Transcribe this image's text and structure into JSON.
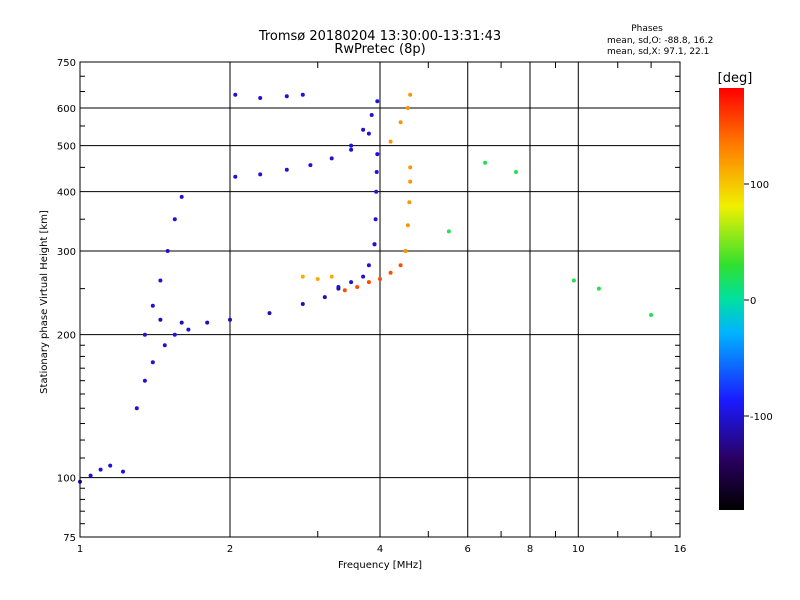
{
  "title_line1": "Tromsø 20180204 13:30:00-13:31:43",
  "title_line2": "RwPretec (8p)",
  "phase_box": {
    "heading": "Phases",
    "line_o": "mean, sd,O: -88.8, 16.2",
    "line_x": "mean, sd,X:  97.1, 22.1"
  },
  "colorbar": {
    "label": "[deg]",
    "ticks": [
      "100",
      "0",
      "-100"
    ]
  },
  "chart_data": {
    "type": "scatter",
    "xlabel": "Frequency [MHz]",
    "ylabel": "Stationary phase Virtual Height [km]",
    "xscale": "log",
    "yscale": "log",
    "xlim": [
      1,
      16
    ],
    "ylim": [
      75,
      750
    ],
    "x_ticks": [
      "1",
      "2",
      "4",
      "6",
      "8",
      "10",
      "16"
    ],
    "y_ticks": [
      "75",
      "100",
      "200",
      "300",
      "400",
      "500",
      "600",
      "750"
    ],
    "grid": true,
    "color_scale": {
      "label": "[deg]",
      "min": -180,
      "max": 180
    },
    "traces": [
      {
        "x": [
          1.0,
          1.05,
          1.1,
          1.15,
          1.22
        ],
        "y": [
          98,
          101,
          104,
          106,
          103
        ],
        "phase": -100
      },
      {
        "x": [
          1.3,
          1.35,
          1.4,
          1.48,
          1.55,
          1.65
        ],
        "y": [
          140,
          160,
          175,
          190,
          200,
          205
        ],
        "phase": -100
      },
      {
        "x": [
          1.35,
          1.4,
          1.45,
          1.5,
          1.55,
          1.6
        ],
        "y": [
          200,
          230,
          260,
          300,
          350,
          390
        ],
        "phase": -100
      },
      {
        "x": [
          1.45,
          1.6,
          1.8,
          2.0,
          2.4,
          2.8,
          3.1,
          3.3
        ],
        "y": [
          215,
          212,
          212,
          215,
          222,
          232,
          240,
          250
        ],
        "phase": -110
      },
      {
        "x": [
          3.3,
          3.5,
          3.7,
          3.8,
          3.9
        ],
        "y": [
          252,
          258,
          265,
          280,
          310
        ],
        "phase": -100
      },
      {
        "x": [
          3.9,
          3.92,
          3.93,
          3.94,
          3.95
        ],
        "y": [
          310,
          350,
          400,
          440,
          480
        ],
        "phase": -100
      },
      {
        "x": [
          2.05,
          2.3,
          2.6,
          2.9,
          3.2,
          3.5,
          3.8
        ],
        "y": [
          430,
          435,
          445,
          455,
          470,
          490,
          530
        ],
        "phase": -100
      },
      {
        "x": [
          3.5,
          3.7,
          3.85,
          3.95
        ],
        "y": [
          500,
          540,
          580,
          620
        ],
        "phase": -100
      },
      {
        "x": [
          2.05,
          2.3,
          2.6,
          2.8
        ],
        "y": [
          640,
          630,
          635,
          640
        ],
        "phase": -100
      },
      {
        "x": [
          2.8,
          3.0,
          3.2
        ],
        "y": [
          265,
          262,
          265
        ],
        "phase": 110
      },
      {
        "x": [
          3.4,
          3.6,
          3.8,
          4.0,
          4.2,
          4.4,
          4.5
        ],
        "y": [
          248,
          252,
          258,
          262,
          270,
          280,
          300
        ],
        "phase": 150
      },
      {
        "x": [
          4.5,
          4.55,
          4.58,
          4.6,
          4.6
        ],
        "y": [
          300,
          340,
          380,
          420,
          450
        ],
        "phase": 120
      },
      {
        "x": [
          4.2,
          4.4,
          4.55,
          4.6
        ],
        "y": [
          510,
          560,
          600,
          640
        ],
        "phase": 120
      },
      {
        "x": [
          5.5,
          6.5,
          7.5,
          9.8,
          11.0,
          14.0
        ],
        "y": [
          330,
          460,
          440,
          260,
          250,
          220
        ],
        "phase": 20
      }
    ]
  }
}
